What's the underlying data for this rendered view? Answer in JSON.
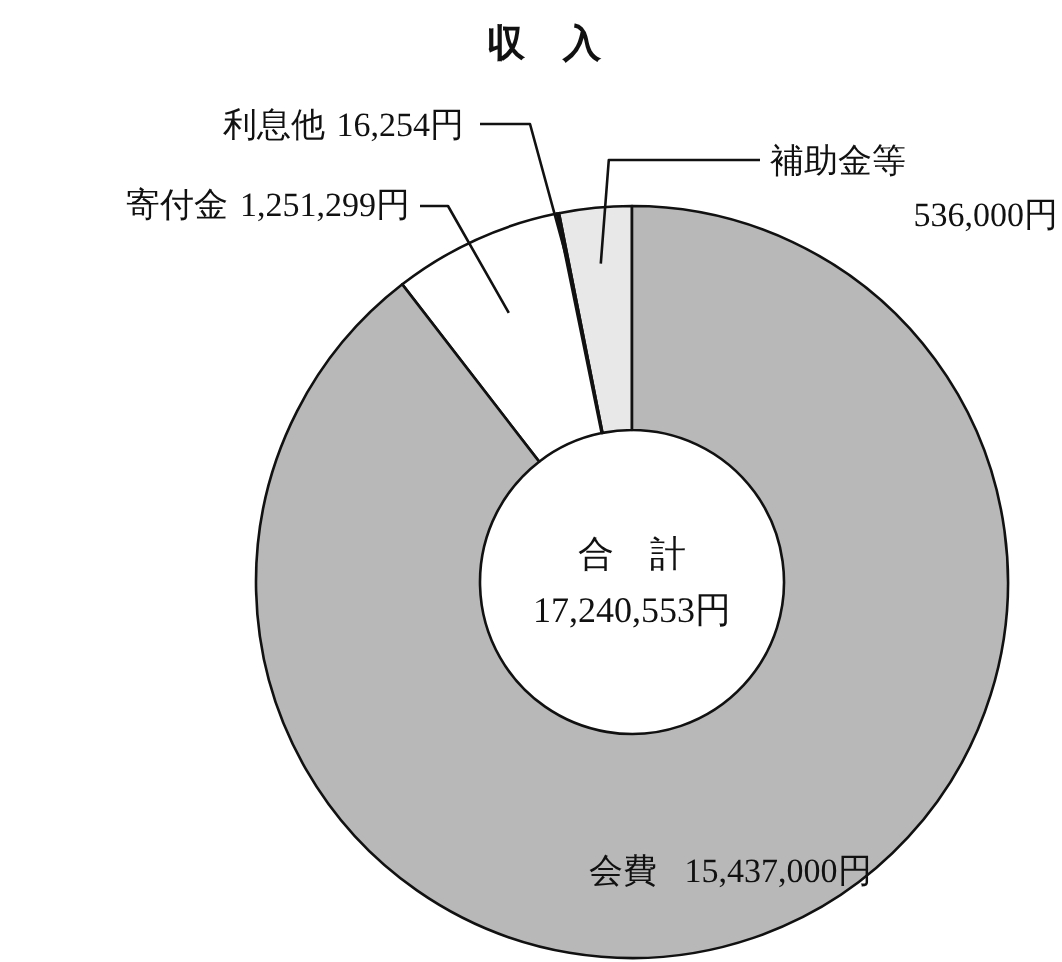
{
  "chart_data": {
    "type": "donut",
    "title": "収　入",
    "categories": [
      "補助金等",
      "利息他",
      "寄付金",
      "会費"
    ],
    "values": [
      536000,
      16254,
      1251299,
      15437000
    ],
    "value_labels": [
      "536,000円",
      "16,254円",
      "1,251,299円",
      "15,437,000円"
    ],
    "colors": [
      "#e8e8e8",
      "#ffffff",
      "#ffffff",
      "#b8b8b8"
    ],
    "annotations": [
      "合　計",
      "17,240,553円"
    ]
  }
}
